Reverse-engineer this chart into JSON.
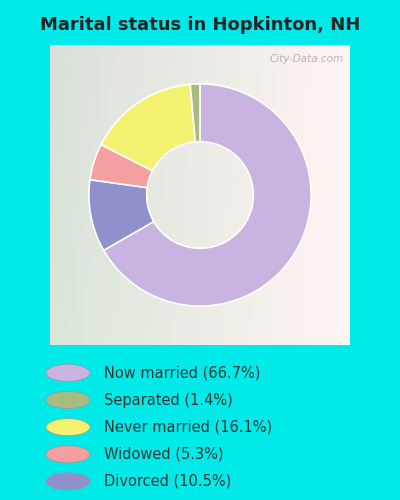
{
  "title": "Marital status in Hopkinton, NH",
  "slices": [
    66.7,
    1.4,
    16.1,
    5.3,
    10.5
  ],
  "labels": [
    "Now married (66.7%)",
    "Separated (1.4%)",
    "Never married (16.1%)",
    "Widowed (5.3%)",
    "Divorced (10.5%)"
  ],
  "colors": [
    "#c9b3e0",
    "#a8bc82",
    "#f2f270",
    "#f4a0a0",
    "#9090cc"
  ],
  "bg_cyan": "#00eaea",
  "bg_chart_tl": "#c8e8d0",
  "bg_chart_br": "#e8f4f8",
  "title_fontsize": 13,
  "legend_fontsize": 10.5,
  "title_color": "#222222",
  "legend_text_color": "#333333",
  "watermark": "City-Data.com",
  "wedge_order": [
    0,
    4,
    3,
    2,
    1
  ],
  "donut_width": 0.52
}
